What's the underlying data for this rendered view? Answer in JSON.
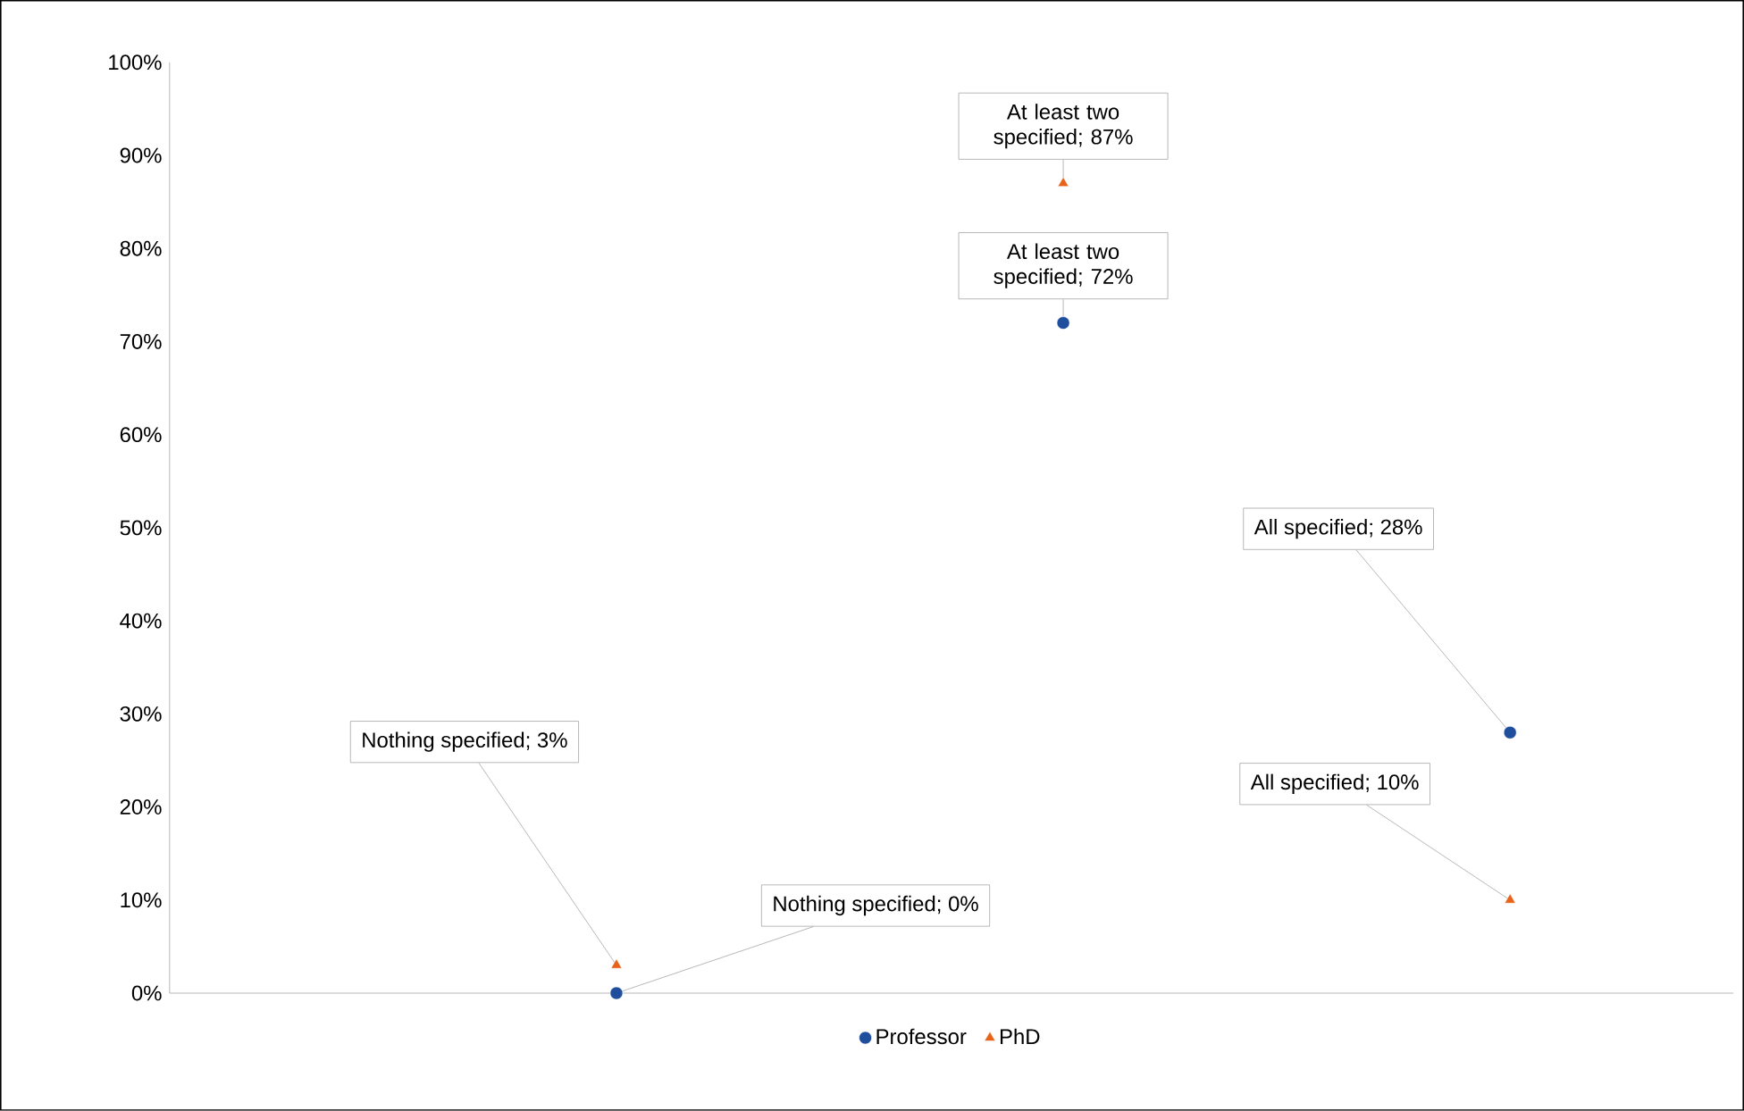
{
  "chart_data": {
    "type": "scatter",
    "categories": [
      null,
      null,
      null
    ],
    "series": [
      {
        "name": "Professor",
        "color": "#1f4e9c",
        "marker": "circle",
        "values": [
          0,
          72,
          28
        ],
        "value_labels": [
          "Nothing specified; 0%",
          "At least two specified; 72%",
          "All specified; 28%"
        ]
      },
      {
        "name": "PhD",
        "color": "#e8631a",
        "marker": "triangle",
        "values": [
          3,
          87,
          10
        ],
        "value_labels": [
          "Nothing specified; 3%",
          "At least two specified; 87%",
          "All specified; 10%"
        ]
      }
    ],
    "ylim": [
      0,
      100
    ],
    "yticks": [
      {
        "value": 0,
        "label": "0%"
      },
      {
        "value": 10,
        "label": "10%"
      },
      {
        "value": 20,
        "label": "20%"
      },
      {
        "value": 30,
        "label": "30%"
      },
      {
        "value": 40,
        "label": "40%"
      },
      {
        "value": 50,
        "label": "50%"
      },
      {
        "value": 60,
        "label": "60%"
      },
      {
        "value": 70,
        "label": "70%"
      },
      {
        "value": 80,
        "label": "80%"
      },
      {
        "value": 90,
        "label": "90%"
      },
      {
        "value": 100,
        "label": "100%"
      }
    ],
    "grid": false,
    "legend": "bottom"
  }
}
